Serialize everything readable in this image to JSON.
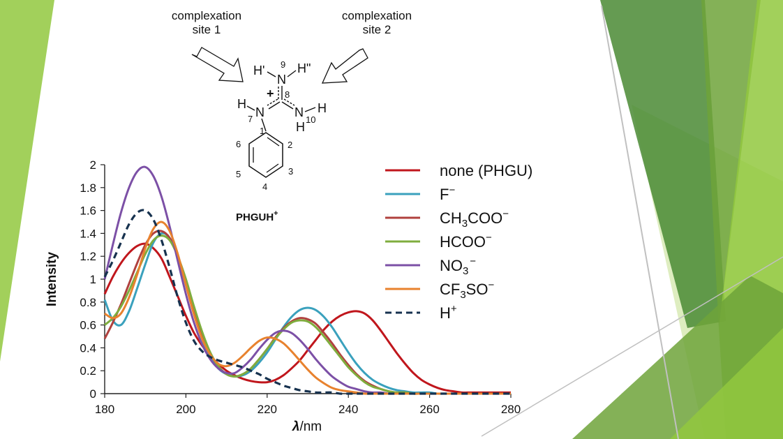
{
  "slide": {
    "decor_colors": {
      "light_green": "#92c83e",
      "mid_green": "#6fa33a",
      "dark_green": "#4a8a34",
      "pale_green": "#d6e8b0",
      "grey_line": "#c0c0c0"
    }
  },
  "molecule": {
    "site1_line1": "complexation",
    "site1_line2": "site 1",
    "site2_line1": "complexation",
    "site2_line2": "site 2",
    "name": "PHGUH",
    "name_charge": "+",
    "atoms": {
      "n9": "N",
      "n7": "N",
      "n10": "N",
      "h_prime": "H'",
      "h_dprime": "H\"",
      "h7": "H",
      "h10a": "H",
      "h10b": "H",
      "charge": "+"
    },
    "numbers": {
      "n9": "9",
      "c8": "8",
      "n7": "7",
      "n10": "10",
      "c1": "1",
      "c2": "2",
      "c3": "3",
      "c4": "4",
      "c5": "5",
      "c6": "6"
    }
  },
  "chart_data": {
    "type": "line",
    "title": "",
    "xlabel_symbol": "λ",
    "xlabel_unit": "/nm",
    "xlabel": "λ/nm",
    "ylabel": "Intensity",
    "xlim": [
      180,
      280
    ],
    "ylim": [
      0,
      2
    ],
    "xticks": [
      "180",
      "200",
      "220",
      "240",
      "260",
      "280"
    ],
    "yticks": [
      "0",
      "0.2",
      "0.4",
      "0.6",
      "0.8",
      "1",
      "1.2",
      "1.4",
      "1.6",
      "1.8",
      "2"
    ],
    "grid": false,
    "legend_position": "right",
    "series": [
      {
        "name": "none (PHGU)",
        "legend_main": "none (PHGU)",
        "legend_sub": "",
        "legend_rest": "",
        "legend_sup": "",
        "color": "#c0161c",
        "dash": false,
        "x": [
          180,
          182,
          184,
          186,
          188,
          190,
          192,
          194,
          196,
          198,
          200,
          202,
          204,
          206,
          208,
          210,
          212,
          214,
          216,
          218,
          220,
          222,
          224,
          226,
          228,
          230,
          232,
          234,
          236,
          238,
          240,
          242,
          244,
          246,
          248,
          250,
          252,
          254,
          256,
          258,
          260,
          262,
          264,
          266,
          268,
          270,
          272,
          274,
          276,
          278,
          280
        ],
        "y": [
          0.87,
          1.02,
          1.14,
          1.23,
          1.29,
          1.31,
          1.27,
          1.18,
          1.02,
          0.85,
          0.68,
          0.53,
          0.42,
          0.33,
          0.26,
          0.2,
          0.16,
          0.13,
          0.11,
          0.1,
          0.1,
          0.12,
          0.16,
          0.22,
          0.29,
          0.38,
          0.47,
          0.56,
          0.63,
          0.68,
          0.71,
          0.72,
          0.7,
          0.64,
          0.55,
          0.45,
          0.35,
          0.26,
          0.18,
          0.12,
          0.08,
          0.05,
          0.03,
          0.02,
          0.01,
          0.01,
          0.01,
          0.01,
          0.01,
          0.01,
          0.01
        ]
      },
      {
        "name": "F⁻",
        "legend_main": "F",
        "legend_sub": "",
        "legend_rest": "",
        "legend_sup": "−",
        "color": "#3aa1bd",
        "dash": false,
        "x": [
          180,
          182,
          184,
          186,
          188,
          190,
          192,
          194,
          196,
          198,
          200,
          202,
          204,
          206,
          208,
          210,
          212,
          214,
          216,
          218,
          220,
          222,
          224,
          226,
          228,
          230,
          232,
          234,
          236,
          238,
          240,
          242,
          244,
          246,
          248,
          250,
          252,
          254,
          256,
          258,
          260,
          262,
          264,
          266,
          268,
          270,
          272,
          274,
          276,
          278,
          280
        ],
        "y": [
          0.82,
          0.64,
          0.6,
          0.72,
          0.92,
          1.13,
          1.32,
          1.4,
          1.36,
          1.2,
          0.95,
          0.7,
          0.48,
          0.32,
          0.22,
          0.17,
          0.15,
          0.16,
          0.2,
          0.27,
          0.36,
          0.47,
          0.58,
          0.67,
          0.73,
          0.75,
          0.73,
          0.67,
          0.58,
          0.47,
          0.36,
          0.26,
          0.18,
          0.12,
          0.08,
          0.05,
          0.03,
          0.02,
          0.01,
          0.01,
          0.01,
          0.0,
          0.0,
          0.0,
          0.0,
          0.0,
          0.0,
          0.0,
          0.0,
          0.0,
          0.0
        ]
      },
      {
        "name": "CH₃COO⁻",
        "legend_main": "CH",
        "legend_sub": "3",
        "legend_rest": "COO",
        "legend_sup": "−",
        "color": "#b0413e",
        "dash": false,
        "x": [
          180,
          182,
          184,
          186,
          188,
          190,
          192,
          194,
          196,
          198,
          200,
          202,
          204,
          206,
          208,
          210,
          212,
          214,
          216,
          218,
          220,
          222,
          224,
          226,
          228,
          230,
          232,
          234,
          236,
          238,
          240,
          242,
          244,
          246,
          248,
          250,
          252,
          254,
          256,
          258,
          260,
          262,
          264,
          266,
          268,
          270,
          272,
          274,
          276,
          278,
          280
        ],
        "y": [
          0.48,
          0.62,
          0.78,
          0.96,
          1.14,
          1.3,
          1.4,
          1.42,
          1.36,
          1.2,
          0.98,
          0.74,
          0.52,
          0.35,
          0.24,
          0.17,
          0.15,
          0.17,
          0.22,
          0.3,
          0.39,
          0.49,
          0.57,
          0.63,
          0.66,
          0.65,
          0.61,
          0.53,
          0.44,
          0.34,
          0.25,
          0.17,
          0.11,
          0.07,
          0.04,
          0.02,
          0.01,
          0.01,
          0.0,
          0.0,
          0.0,
          0.0,
          0.0,
          0.0,
          0.0,
          0.0,
          0.0,
          0.0,
          0.0,
          0.0,
          0.0
        ]
      },
      {
        "name": "HCOO⁻",
        "legend_main": "HCOO",
        "legend_sub": "",
        "legend_rest": "",
        "legend_sup": "−",
        "color": "#7fad3e",
        "dash": false,
        "x": [
          180,
          182,
          184,
          186,
          188,
          190,
          192,
          194,
          196,
          198,
          200,
          202,
          204,
          206,
          208,
          210,
          212,
          214,
          216,
          218,
          220,
          222,
          224,
          226,
          228,
          230,
          232,
          234,
          236,
          238,
          240,
          242,
          244,
          246,
          248,
          250,
          252,
          254,
          256,
          258,
          260,
          262,
          264,
          266,
          268,
          270,
          272,
          274,
          276,
          278,
          280
        ],
        "y": [
          0.6,
          0.66,
          0.76,
          0.9,
          1.06,
          1.22,
          1.34,
          1.38,
          1.34,
          1.2,
          1.0,
          0.76,
          0.54,
          0.36,
          0.24,
          0.17,
          0.15,
          0.17,
          0.22,
          0.3,
          0.39,
          0.48,
          0.56,
          0.62,
          0.64,
          0.63,
          0.58,
          0.5,
          0.41,
          0.32,
          0.23,
          0.16,
          0.1,
          0.06,
          0.04,
          0.02,
          0.01,
          0.01,
          0.0,
          0.0,
          0.0,
          0.0,
          0.0,
          0.0,
          0.0,
          0.0,
          0.0,
          0.0,
          0.0,
          0.0,
          0.0
        ]
      },
      {
        "name": "NO₃⁻",
        "legend_main": "NO",
        "legend_sub": "3",
        "legend_rest": "",
        "legend_sup": "−",
        "color": "#7c50a6",
        "dash": false,
        "x": [
          180,
          182,
          184,
          186,
          188,
          190,
          192,
          194,
          196,
          198,
          200,
          202,
          204,
          206,
          208,
          210,
          212,
          214,
          216,
          218,
          220,
          222,
          224,
          226,
          228,
          230,
          232,
          234,
          236,
          238,
          240,
          242,
          244,
          246,
          248,
          250,
          252,
          254,
          256,
          258,
          260,
          262,
          264,
          266,
          268,
          270,
          272,
          274,
          276,
          278,
          280
        ],
        "y": [
          1.0,
          1.3,
          1.58,
          1.8,
          1.94,
          1.98,
          1.9,
          1.72,
          1.46,
          1.16,
          0.87,
          0.62,
          0.43,
          0.3,
          0.22,
          0.18,
          0.18,
          0.23,
          0.3,
          0.39,
          0.47,
          0.53,
          0.55,
          0.53,
          0.47,
          0.39,
          0.3,
          0.22,
          0.15,
          0.1,
          0.06,
          0.04,
          0.02,
          0.01,
          0.01,
          0.0,
          0.0,
          0.0,
          0.0,
          0.0,
          0.0,
          0.0,
          0.0,
          0.0,
          0.0,
          0.0,
          0.0,
          0.0,
          0.0,
          0.0,
          0.0
        ]
      },
      {
        "name": "CF₃SO₃⁻",
        "legend_main": "CF",
        "legend_sub": "3",
        "legend_rest": "SO",
        "legend_sup": "−",
        "color": "#e8822e",
        "dash": false,
        "x": [
          180,
          182,
          184,
          186,
          188,
          190,
          192,
          194,
          196,
          198,
          200,
          202,
          204,
          206,
          208,
          210,
          212,
          214,
          216,
          218,
          220,
          222,
          224,
          226,
          228,
          230,
          232,
          234,
          236,
          238,
          240,
          242,
          244,
          246,
          248,
          250,
          252,
          254,
          256,
          258,
          260,
          262,
          264,
          266,
          268,
          270,
          272,
          274,
          276,
          278,
          280
        ],
        "y": [
          0.7,
          0.66,
          0.7,
          0.84,
          1.04,
          1.27,
          1.44,
          1.5,
          1.42,
          1.22,
          0.95,
          0.69,
          0.48,
          0.34,
          0.26,
          0.24,
          0.27,
          0.33,
          0.4,
          0.46,
          0.49,
          0.48,
          0.44,
          0.37,
          0.29,
          0.21,
          0.14,
          0.09,
          0.05,
          0.03,
          0.02,
          0.01,
          0.0,
          0.0,
          0.0,
          0.0,
          0.0,
          0.0,
          0.0,
          0.0,
          0.0,
          0.0,
          0.0,
          0.0,
          0.0,
          0.0,
          0.0,
          0.0,
          0.0,
          0.0,
          0.0
        ]
      },
      {
        "name": "H⁺",
        "legend_main": "H",
        "legend_sub": "",
        "legend_rest": "",
        "legend_sup": "+",
        "color": "#17324f",
        "dash": true,
        "x": [
          180,
          182,
          184,
          186,
          188,
          190,
          192,
          194,
          196,
          198,
          200,
          202,
          204,
          206,
          208,
          210,
          212,
          214,
          216,
          218,
          220,
          222,
          224,
          226,
          228,
          230,
          232,
          234,
          236,
          238,
          240,
          242,
          244,
          246,
          248,
          250,
          252,
          254,
          256,
          258,
          260,
          262,
          264,
          266,
          268,
          270,
          272,
          274,
          276,
          278,
          280
        ],
        "y": [
          1.02,
          1.16,
          1.32,
          1.48,
          1.58,
          1.6,
          1.52,
          1.34,
          1.1,
          0.84,
          0.62,
          0.46,
          0.37,
          0.32,
          0.29,
          0.27,
          0.25,
          0.23,
          0.2,
          0.17,
          0.13,
          0.1,
          0.07,
          0.05,
          0.03,
          0.02,
          0.01,
          0.01,
          0.01,
          0.0,
          0.0,
          0.0,
          0.0,
          0.0,
          0.0,
          0.0,
          0.0,
          0.0,
          0.0,
          0.0,
          0.0,
          0.0,
          0.0,
          0.0,
          0.0,
          0.0,
          0.0,
          0.0,
          0.0,
          0.0,
          0.0
        ]
      }
    ]
  }
}
